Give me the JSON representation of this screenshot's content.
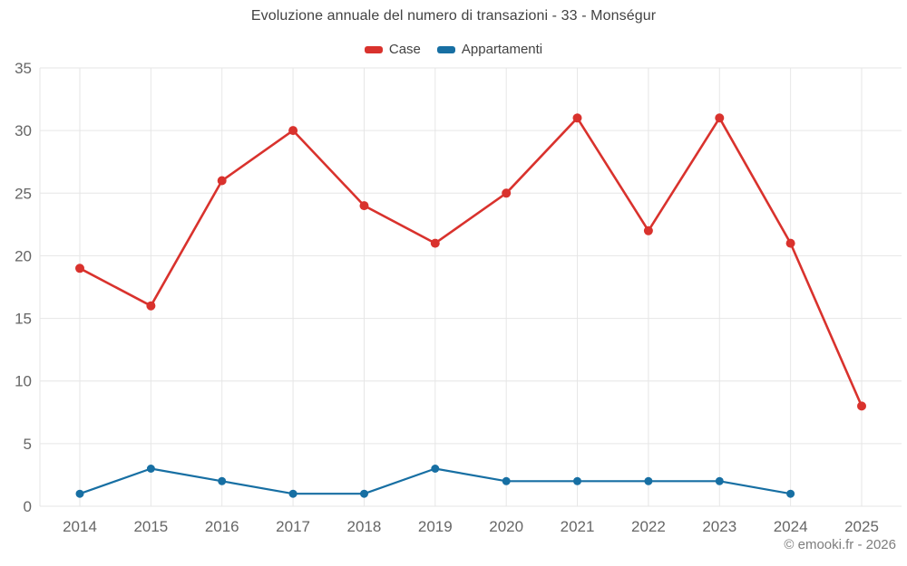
{
  "chart_data": {
    "type": "line",
    "title": "Evoluzione annuale del numero di transazioni - 33 - Monségur",
    "categories": [
      "2014",
      "2015",
      "2016",
      "2017",
      "2018",
      "2019",
      "2020",
      "2021",
      "2022",
      "2023",
      "2024",
      "2025"
    ],
    "series": [
      {
        "name": "Case",
        "color": "#d9322d",
        "marker_radius": 5,
        "line_width": 2.6,
        "values": [
          19,
          16,
          26,
          30,
          24,
          21,
          25,
          31,
          22,
          31,
          21,
          8
        ]
      },
      {
        "name": "Appartamenti",
        "color": "#176fa3",
        "marker_radius": 4.5,
        "line_width": 2.2,
        "values": [
          1,
          3,
          2,
          1,
          1,
          3,
          2,
          2,
          2,
          2,
          1,
          null
        ]
      }
    ],
    "xlabel": "",
    "ylabel": "",
    "ylim": [
      0,
      35
    ],
    "ytick_step": 5,
    "yticks": [
      0,
      5,
      10,
      15,
      20,
      25,
      30,
      35
    ],
    "grid": true,
    "grid_color": "#e6e6e6",
    "tick_label_color": "#666666",
    "legend_position": "top"
  },
  "legend": {
    "items": [
      {
        "label": "Case"
      },
      {
        "label": "Appartamenti"
      }
    ]
  },
  "footer": {
    "credit": "© emooki.fr - 2026"
  }
}
